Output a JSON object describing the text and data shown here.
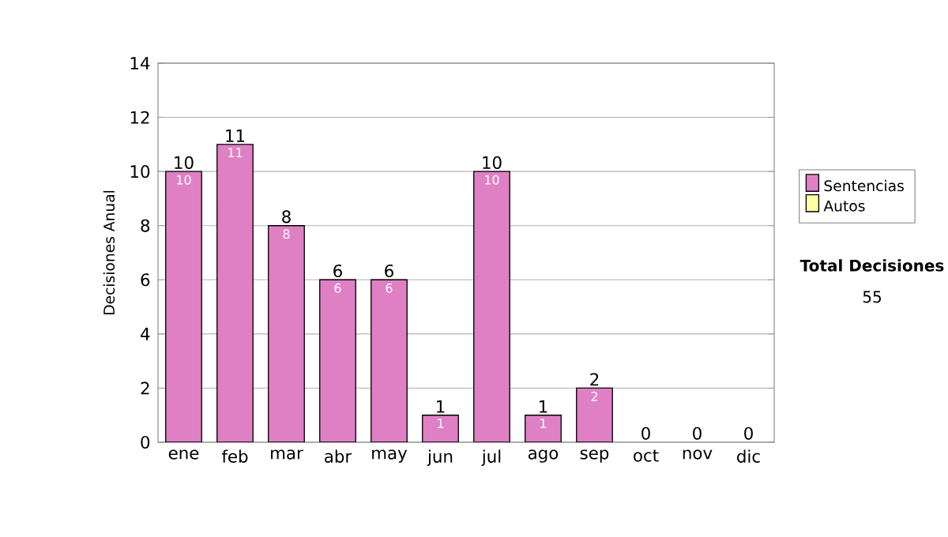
{
  "chart_data": {
    "type": "bar",
    "ylabel": "Decisiones Anual",
    "categories": [
      "ene",
      "feb",
      "mar",
      "abr",
      "may",
      "jun",
      "jul",
      "ago",
      "sep",
      "oct",
      "nov",
      "dic"
    ],
    "series": [
      {
        "name": "Sentencias",
        "color": "#e080c4",
        "values": [
          10,
          11,
          8,
          6,
          6,
          1,
          10,
          1,
          2,
          0,
          0,
          0
        ],
        "value_labels": [
          "10",
          "11",
          "8",
          "6",
          "6",
          "1",
          "10",
          "1",
          "2",
          null,
          null,
          null
        ]
      },
      {
        "name": "Autos",
        "color": "#ffffa8",
        "values": [
          0,
          0,
          0,
          0,
          0,
          0,
          0,
          0,
          0,
          0,
          0,
          0
        ]
      }
    ],
    "stacked": true,
    "totals": [
      "10",
      "11",
      "8",
      "6",
      "6",
      "1",
      "10",
      "1",
      "2",
      "0",
      "0",
      "0"
    ],
    "ylim": [
      0,
      14
    ],
    "yticks": [
      0,
      2,
      4,
      6,
      8,
      10,
      12,
      14
    ],
    "grid": "y",
    "legend": "right",
    "annotations": [
      "Total Decisiones",
      "55"
    ]
  }
}
